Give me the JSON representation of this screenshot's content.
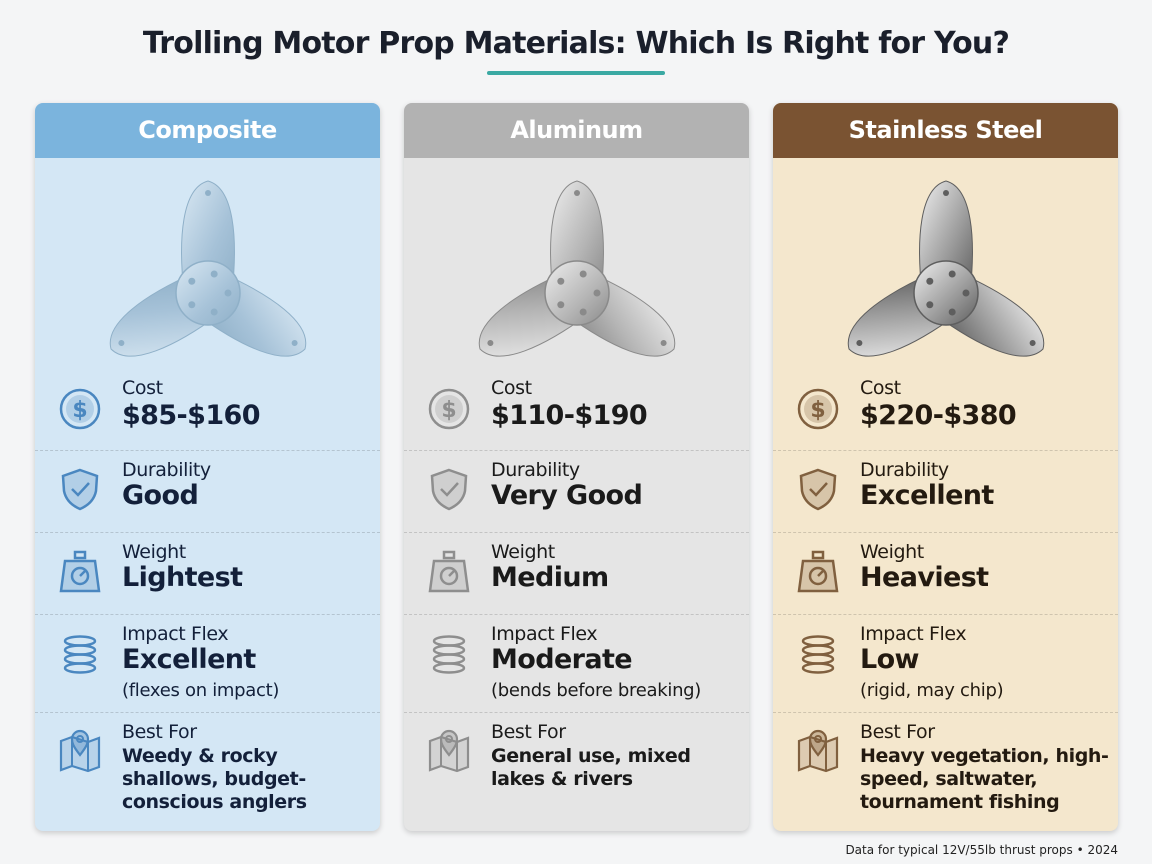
{
  "title": "Trolling Motor Prop Materials: Which Is Right for You?",
  "cards": [
    {
      "header": "Composite",
      "rows": [
        {
          "label": "Cost",
          "value": "$85-$160"
        },
        {
          "label": "Durability",
          "value": "Good"
        },
        {
          "label": "Weight",
          "value": "Lightest"
        },
        {
          "label": "Impact Flex",
          "value": "Excellent",
          "note": "(flexes on impact)"
        },
        {
          "label": "Best For",
          "value": "Weedy & rocky shallows, budget-conscious anglers"
        }
      ]
    },
    {
      "header": "Aluminum",
      "rows": [
        {
          "label": "Cost",
          "value": "$110-$190"
        },
        {
          "label": "Durability",
          "value": "Very Good"
        },
        {
          "label": "Weight",
          "value": "Medium"
        },
        {
          "label": "Impact Flex",
          "value": "Moderate",
          "note": "(bends before breaking)"
        },
        {
          "label": "Best For",
          "value": "General use, mixed lakes & rivers"
        }
      ]
    },
    {
      "header": "Stainless Steel",
      "rows": [
        {
          "label": "Cost",
          "value": "$220-$380"
        },
        {
          "label": "Durability",
          "value": "Excellent"
        },
        {
          "label": "Weight",
          "value": "Heaviest"
        },
        {
          "label": "Impact Flex",
          "value": "Low",
          "note": "(rigid, may chip)"
        },
        {
          "label": "Best For",
          "value": "Heavy vegetation, high-speed, saltwater, tournament fishing"
        }
      ]
    }
  ],
  "footer": "Data for typical 12V/55lb thrust props • 2024"
}
